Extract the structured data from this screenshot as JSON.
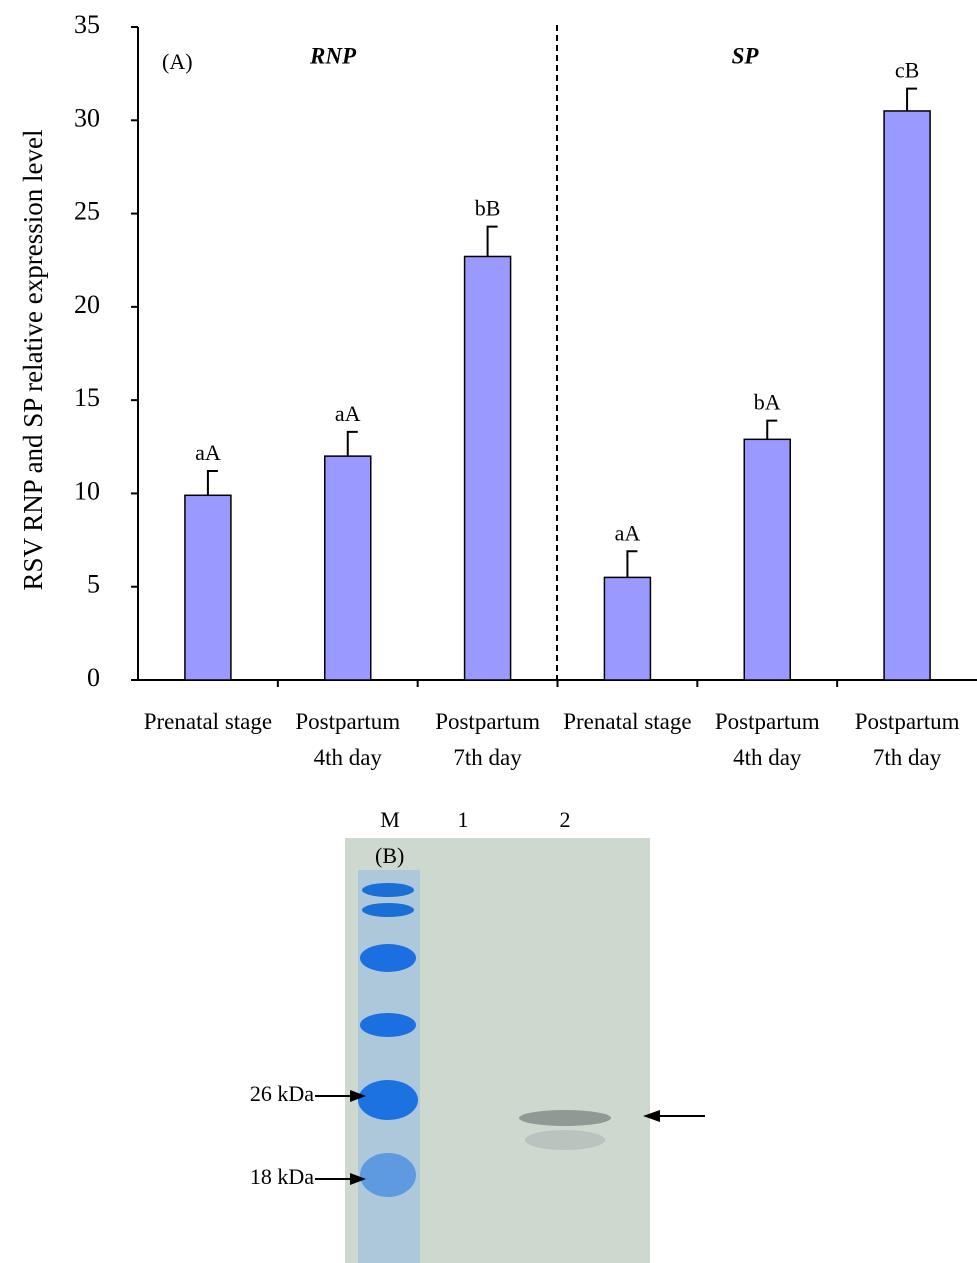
{
  "chart_data": {
    "type": "bar",
    "ylabel": "RSV RNP and SP relative expression level",
    "panel_label": "(A)",
    "groups": [
      "RNP",
      "SP"
    ],
    "categories": [
      "Prenatal stage",
      "Postpartum 4th day",
      "Postpartum 7th day",
      "Prenatal stage",
      "Postpartum 4th day",
      "Postpartum 7th day"
    ],
    "values": [
      9.9,
      12.0,
      22.7,
      5.5,
      12.9,
      30.5
    ],
    "errors": [
      1.3,
      1.3,
      1.6,
      1.4,
      1.0,
      1.2
    ],
    "annotations": [
      "aA",
      "aA",
      "bB",
      "aA",
      "bA",
      "cB"
    ],
    "color": "#9999ff",
    "ylim": [
      0,
      35
    ],
    "yticks": [
      0,
      5,
      10,
      15,
      20,
      25,
      30,
      35
    ]
  },
  "gel": {
    "panel_label": "(B)",
    "lanes": [
      "M",
      "1",
      "2"
    ],
    "markers": [
      "26 kDa",
      "18 kDa"
    ]
  }
}
